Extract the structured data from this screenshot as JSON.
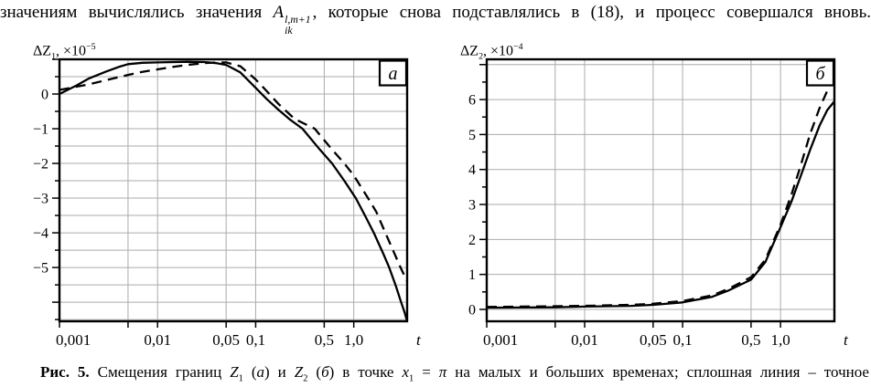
{
  "header": {
    "segments": [
      {
        "t": "значениям вычислялись значения "
      },
      {
        "t": "A",
        "s": "i"
      },
      {
        "s": "supsub",
        "sup": "l,m+1",
        "sub": "ik"
      },
      {
        "t": ", которые снова подставлялись в (18), и процесс совершался вновь."
      }
    ]
  },
  "caption": {
    "segments": [
      {
        "t": "Рис. 5.",
        "s": "b"
      },
      {
        "t": " Смещения границ "
      },
      {
        "t": "Z",
        "s": "i"
      },
      {
        "t": "1",
        "s": "sub"
      },
      {
        "t": " ("
      },
      {
        "t": "а",
        "s": "i"
      },
      {
        "t": ") и "
      },
      {
        "t": "Z",
        "s": "i"
      },
      {
        "t": "2",
        "s": "sub"
      },
      {
        "t": " ("
      },
      {
        "t": "б",
        "s": "i"
      },
      {
        "t": ") в точке "
      },
      {
        "t": "x",
        "s": "i"
      },
      {
        "t": "1",
        "s": "sub"
      },
      {
        "t": " = "
      },
      {
        "t": "π",
        "s": "i"
      },
      {
        "t": " на малых и больших временах; сплошная линия – точное"
      }
    ]
  },
  "chart_data": [
    {
      "type": "line",
      "panel_label": "а",
      "ylabel_segments": [
        {
          "t": "ΔZ"
        },
        {
          "t": "1",
          "s": "sub"
        },
        {
          "t": ", ×10"
        },
        {
          "t": "−5",
          "s": "sup"
        }
      ],
      "xlabel": "t",
      "xscale": "log",
      "xlim": [
        0.001,
        3.5
      ],
      "ylim": [
        -6.55,
        1.0
      ],
      "grid": true,
      "legend_position": "top-right-box",
      "xticks": [
        {
          "v": 0.001,
          "label": "0,001",
          "shift": true
        },
        {
          "v": 0.005,
          "label": ""
        },
        {
          "v": 0.01,
          "label": "0,01"
        },
        {
          "v": 0.05,
          "label": "0,05"
        },
        {
          "v": 0.1,
          "label": "0,1"
        },
        {
          "v": 0.5,
          "label": "0,5"
        },
        {
          "v": 1.0,
          "label": "1,0"
        }
      ],
      "yticks": [
        {
          "v": 0,
          "label": "0"
        },
        {
          "v": -1,
          "label": "−1"
        },
        {
          "v": -2,
          "label": "−2"
        },
        {
          "v": -3,
          "label": "−3"
        },
        {
          "v": -4,
          "label": "−4"
        },
        {
          "v": -5,
          "label": "−5"
        }
      ],
      "ytick_minor_step": 0.5,
      "ygrid_step": 0.5,
      "series": [
        {
          "name": "сплошная линия (точное)",
          "style": "solid",
          "points": [
            [
              0.001,
              0.0
            ],
            [
              0.0015,
              0.25
            ],
            [
              0.002,
              0.45
            ],
            [
              0.003,
              0.65
            ],
            [
              0.004,
              0.78
            ],
            [
              0.005,
              0.86
            ],
            [
              0.007,
              0.9
            ],
            [
              0.01,
              0.91
            ],
            [
              0.02,
              0.93
            ],
            [
              0.03,
              0.92
            ],
            [
              0.04,
              0.89
            ],
            [
              0.05,
              0.84
            ],
            [
              0.07,
              0.62
            ],
            [
              0.1,
              0.18
            ],
            [
              0.13,
              -0.15
            ],
            [
              0.17,
              -0.45
            ],
            [
              0.22,
              -0.72
            ],
            [
              0.3,
              -1.0
            ],
            [
              0.45,
              -1.6
            ],
            [
              0.6,
              -2.0
            ],
            [
              0.8,
              -2.5
            ],
            [
              1.05,
              -3.0
            ],
            [
              1.3,
              -3.5
            ],
            [
              1.6,
              -4.0
            ],
            [
              2.0,
              -4.6
            ],
            [
              2.3,
              -5.0
            ],
            [
              2.7,
              -5.55
            ],
            [
              3.0,
              -5.95
            ],
            [
              3.3,
              -6.3
            ],
            [
              3.5,
              -6.55
            ]
          ]
        },
        {
          "name": "штриховая линия",
          "style": "dashed",
          "points": [
            [
              0.001,
              0.12
            ],
            [
              0.002,
              0.28
            ],
            [
              0.003,
              0.4
            ],
            [
              0.005,
              0.55
            ],
            [
              0.007,
              0.64
            ],
            [
              0.01,
              0.71
            ],
            [
              0.015,
              0.79
            ],
            [
              0.02,
              0.84
            ],
            [
              0.03,
              0.89
            ],
            [
              0.04,
              0.91
            ],
            [
              0.05,
              0.91
            ],
            [
              0.07,
              0.8
            ],
            [
              0.1,
              0.42
            ],
            [
              0.13,
              0.08
            ],
            [
              0.17,
              -0.28
            ],
            [
              0.25,
              -0.72
            ],
            [
              0.4,
              -1.0
            ],
            [
              0.6,
              -1.6
            ],
            [
              0.8,
              -2.0
            ],
            [
              1.0,
              -2.35
            ],
            [
              1.4,
              -3.0
            ],
            [
              1.7,
              -3.4
            ],
            [
              2.1,
              -4.0
            ],
            [
              2.6,
              -4.6
            ],
            [
              3.0,
              -5.0
            ],
            [
              3.5,
              -5.4
            ]
          ]
        }
      ]
    },
    {
      "type": "line",
      "panel_label": "б",
      "ylabel_segments": [
        {
          "t": "ΔZ"
        },
        {
          "t": "2",
          "s": "sub"
        },
        {
          "t": ", ×10"
        },
        {
          "t": "−4",
          "s": "sup"
        }
      ],
      "xlabel": "t",
      "xscale": "log",
      "xlim": [
        0.001,
        3.55
      ],
      "ylim": [
        -0.34,
        7.15
      ],
      "grid": true,
      "legend_position": "top-right-box",
      "xticks": [
        {
          "v": 0.001,
          "label": "0,001",
          "shift": true
        },
        {
          "v": 0.005,
          "label": ""
        },
        {
          "v": 0.01,
          "label": "0,01"
        },
        {
          "v": 0.05,
          "label": "0,05"
        },
        {
          "v": 0.1,
          "label": "0,1"
        },
        {
          "v": 0.5,
          "label": "0,5"
        },
        {
          "v": 1.0,
          "label": "1,0"
        }
      ],
      "yticks": [
        {
          "v": 0,
          "label": "0"
        },
        {
          "v": 1,
          "label": "1"
        },
        {
          "v": 2,
          "label": "2"
        },
        {
          "v": 3,
          "label": "3"
        },
        {
          "v": 4,
          "label": "4"
        },
        {
          "v": 5,
          "label": "5"
        },
        {
          "v": 6,
          "label": "6"
        }
      ],
      "ytick_minor_step": 0.5,
      "ygrid_step": 1.0,
      "series": [
        {
          "name": "сплошная линия (точное)",
          "style": "solid",
          "points": [
            [
              0.001,
              0.05
            ],
            [
              0.005,
              0.06
            ],
            [
              0.01,
              0.08
            ],
            [
              0.03,
              0.1
            ],
            [
              0.05,
              0.13
            ],
            [
              0.1,
              0.2
            ],
            [
              0.2,
              0.36
            ],
            [
              0.3,
              0.55
            ],
            [
              0.5,
              0.85
            ],
            [
              0.7,
              1.35
            ],
            [
              1.0,
              2.35
            ],
            [
              1.3,
              3.1
            ],
            [
              1.6,
              3.8
            ],
            [
              2.0,
              4.55
            ],
            [
              2.5,
              5.25
            ],
            [
              3.0,
              5.7
            ],
            [
              3.55,
              5.95
            ]
          ]
        },
        {
          "name": "штриховая линия",
          "style": "dashed",
          "points": [
            [
              0.001,
              0.07
            ],
            [
              0.005,
              0.09
            ],
            [
              0.01,
              0.1
            ],
            [
              0.03,
              0.13
            ],
            [
              0.05,
              0.16
            ],
            [
              0.1,
              0.24
            ],
            [
              0.2,
              0.4
            ],
            [
              0.3,
              0.6
            ],
            [
              0.5,
              0.92
            ],
            [
              0.7,
              1.42
            ],
            [
              1.0,
              2.42
            ],
            [
              1.3,
              3.3
            ],
            [
              1.6,
              4.1
            ],
            [
              2.0,
              5.0
            ],
            [
              2.5,
              5.75
            ],
            [
              3.0,
              6.25
            ],
            [
              3.55,
              6.65
            ]
          ]
        }
      ]
    }
  ]
}
